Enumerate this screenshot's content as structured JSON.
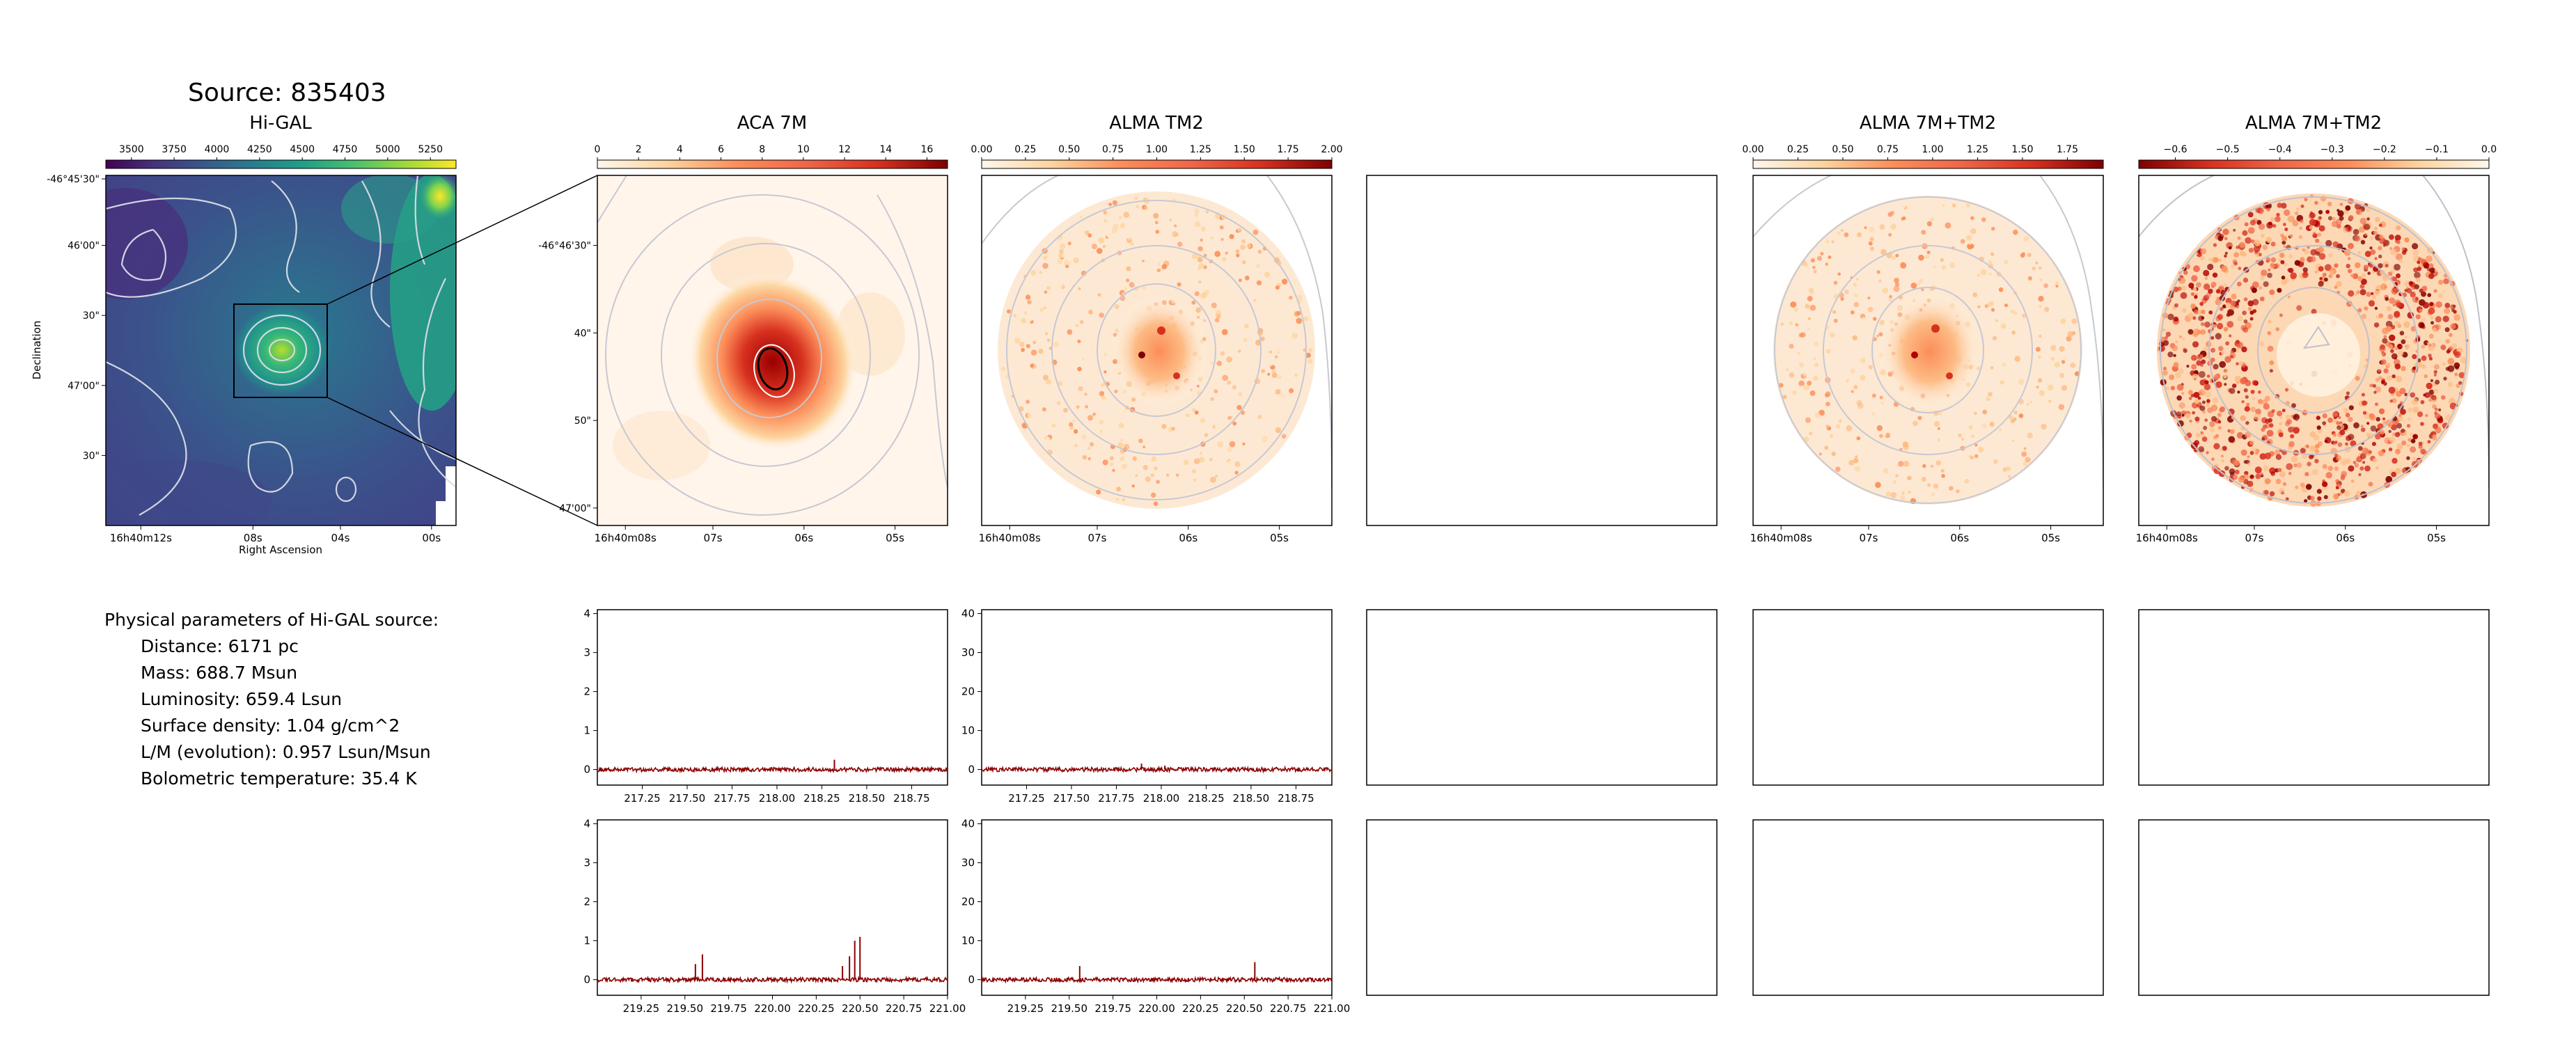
{
  "figure": {
    "title": "Source: 835403",
    "colors": {
      "frame": "#000000",
      "spectrum": "#8b0000",
      "contour": "#c8c8d2",
      "background": "#ffffff"
    }
  },
  "panels": {
    "higal": {
      "title": "Hi-GAL",
      "colormap": "viridis",
      "colorbar_ticks": [
        "3500",
        "3750",
        "4000",
        "4250",
        "4500",
        "4750",
        "5000",
        "5250"
      ],
      "colorbar_range": [
        3350,
        5400
      ],
      "ylabel": "Declination",
      "xlabel": "Right Ascension",
      "yticks": [
        "-46°45'30\"",
        "46'00\"",
        "30\"",
        "47'00\"",
        "30\""
      ],
      "xticks": [
        "16h40m12s",
        "08s",
        "04s",
        "00s"
      ]
    },
    "aca7m": {
      "title": "ACA 7M",
      "colormap": "OrRd",
      "colorbar_ticks": [
        "0",
        "2",
        "4",
        "6",
        "8",
        "10",
        "12",
        "14",
        "16"
      ],
      "colorbar_range": [
        0,
        17
      ],
      "yticks": [
        "-46°46'30\"",
        "40\"",
        "50\"",
        "47'00\""
      ],
      "xticks": [
        "16h40m08s",
        "07s",
        "06s",
        "05s"
      ]
    },
    "almatm2": {
      "title": "ALMA TM2",
      "colormap": "OrRd",
      "colorbar_ticks": [
        "0.00",
        "0.25",
        "0.50",
        "0.75",
        "1.00",
        "1.25",
        "1.50",
        "1.75",
        "2.00"
      ],
      "colorbar_range": [
        0,
        2.0
      ],
      "xticks": [
        "16h40m08s",
        "07s",
        "06s",
        "05s"
      ]
    },
    "combined": {
      "title": "ALMA 7M+TM2",
      "colormap": "OrRd",
      "colorbar_ticks": [
        "0.00",
        "0.25",
        "0.50",
        "0.75",
        "1.00",
        "1.25",
        "1.50",
        "1.75"
      ],
      "colorbar_range": [
        0,
        1.95
      ],
      "xticks": [
        "16h40m08s",
        "07s",
        "06s",
        "05s"
      ]
    },
    "combined_neg": {
      "title": "ALMA 7M+TM2",
      "colormap": "OrRd_r",
      "colorbar_ticks": [
        "−0.6",
        "−0.5",
        "−0.4",
        "−0.3",
        "−0.2",
        "−0.1",
        "0.0"
      ],
      "colorbar_range": [
        -0.67,
        0.0
      ],
      "xticks": [
        "16h40m08s",
        "07s",
        "06s",
        "05s"
      ]
    }
  },
  "parameters": {
    "heading": "Physical parameters of Hi-GAL source:",
    "lines": [
      "Distance: 6171 pc",
      "Mass: 688.7 Msun",
      "Luminosity: 659.4 Lsun",
      "Surface density: 1.04 g/cm^2",
      "L/M (evolution): 0.957 Lsun/Msun",
      "Bolometric temperature: 35.4 K"
    ]
  },
  "chart_data": [
    {
      "type": "line",
      "panel": "spectrum-aca7m-row1",
      "x_ticks": [
        "217.25",
        "217.50",
        "217.75",
        "218.00",
        "218.25",
        "218.50",
        "218.75"
      ],
      "y_ticks": [
        "0",
        "1",
        "2",
        "3",
        "4"
      ],
      "xlim": [
        217.0,
        218.95
      ],
      "ylim": [
        -0.4,
        4.1
      ],
      "baseline": 0,
      "peaks": [
        [
          218.32,
          0.25
        ]
      ]
    },
    {
      "type": "line",
      "panel": "spectrum-almatm2-row1",
      "x_ticks": [
        "217.25",
        "217.50",
        "217.75",
        "218.00",
        "218.25",
        "218.50",
        "218.75"
      ],
      "y_ticks": [
        "0",
        "10",
        "20",
        "30",
        "40"
      ],
      "xlim": [
        217.0,
        218.95
      ],
      "ylim": [
        -4,
        41
      ],
      "baseline": 0,
      "peaks": [
        [
          217.89,
          1.5
        ],
        [
          218.02,
          1.0
        ]
      ]
    },
    {
      "type": "line",
      "panel": "spectrum-aca7m-row2",
      "x_ticks": [
        "219.25",
        "219.50",
        "219.75",
        "220.00",
        "220.25",
        "220.50",
        "220.75",
        "221.00"
      ],
      "y_ticks": [
        "0",
        "1",
        "2",
        "3",
        "4"
      ],
      "xlim": [
        219.0,
        221.0
      ],
      "ylim": [
        -0.4,
        4.1
      ],
      "baseline": 0,
      "peaks": [
        [
          219.56,
          0.4
        ],
        [
          219.6,
          0.65
        ],
        [
          220.4,
          0.35
        ],
        [
          220.44,
          0.6
        ],
        [
          220.47,
          1.0
        ],
        [
          220.5,
          1.1
        ]
      ]
    },
    {
      "type": "line",
      "panel": "spectrum-almatm2-row2",
      "x_ticks": [
        "219.25",
        "219.50",
        "219.75",
        "220.00",
        "220.25",
        "220.50",
        "220.75",
        "221.00"
      ],
      "y_ticks": [
        "0",
        "10",
        "20",
        "30",
        "40"
      ],
      "xlim": [
        219.0,
        221.0
      ],
      "ylim": [
        -4,
        41
      ],
      "baseline": 0,
      "peaks": [
        [
          219.56,
          3.5
        ],
        [
          220.56,
          4.5
        ]
      ]
    }
  ]
}
